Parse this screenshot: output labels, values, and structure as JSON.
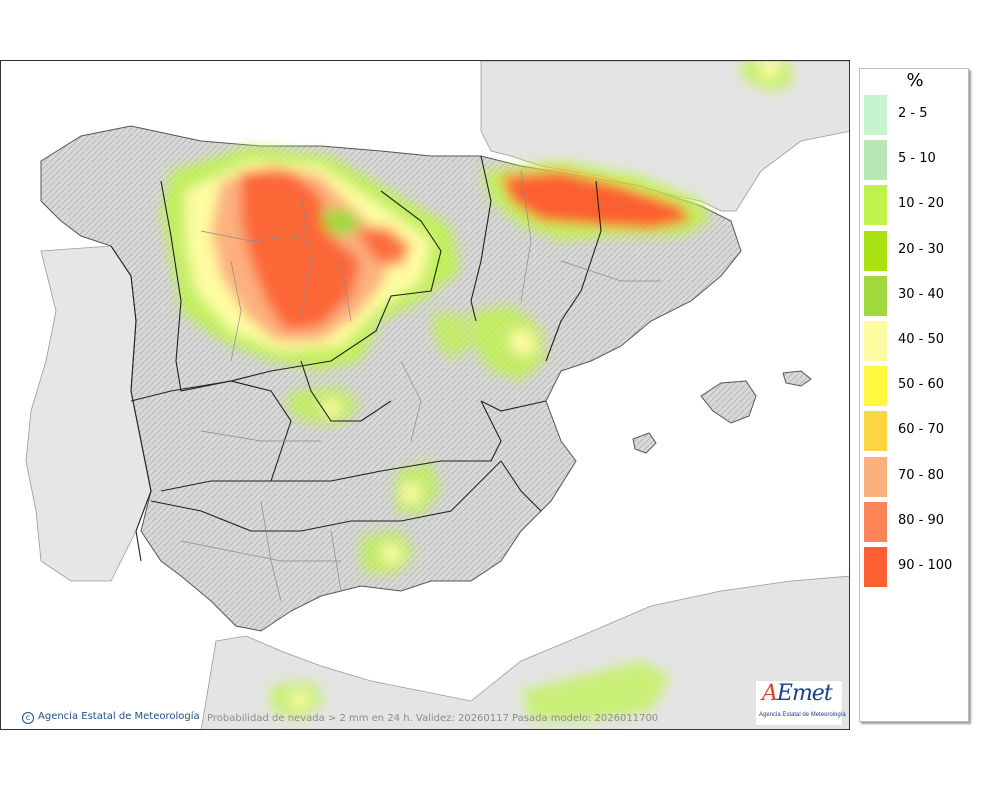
{
  "map": {
    "caption": "Probabilidad de nevada > 2 mm en 24 h. Validez: 20260117 Pasada modelo: 2026011700",
    "agency_label": "Agencia Estatal de Meteorología",
    "agency_icon": "copyright-icon",
    "colors": {
      "sea": "#ffffff",
      "land": "#e4e4e4",
      "relief": "#bdbdbd",
      "border": "#222222",
      "province": "#8a8a8a"
    }
  },
  "logo": {
    "mark_a": "A",
    "mark_rest": "Emet",
    "subtitle": "Agencia Estatal de Meteorología"
  },
  "legend": {
    "title": "%",
    "items": [
      {
        "label": "2 - 5",
        "color": "#c4f5cf"
      },
      {
        "label": "5 - 10",
        "color": "#b7e8b3"
      },
      {
        "label": "10 - 20",
        "color": "#bff34a"
      },
      {
        "label": "20 - 30",
        "color": "#a8e112"
      },
      {
        "label": "30 - 40",
        "color": "#9fd93c"
      },
      {
        "label": "40 - 50",
        "color": "#fefca0"
      },
      {
        "label": "50 - 60",
        "color": "#fef840"
      },
      {
        "label": "60 - 70",
        "color": "#fcd444"
      },
      {
        "label": "70 - 80",
        "color": "#fcb07e"
      },
      {
        "label": "80 - 90",
        "color": "#fc8456"
      },
      {
        "label": "90 - 100",
        "color": "#fc6030"
      }
    ]
  }
}
